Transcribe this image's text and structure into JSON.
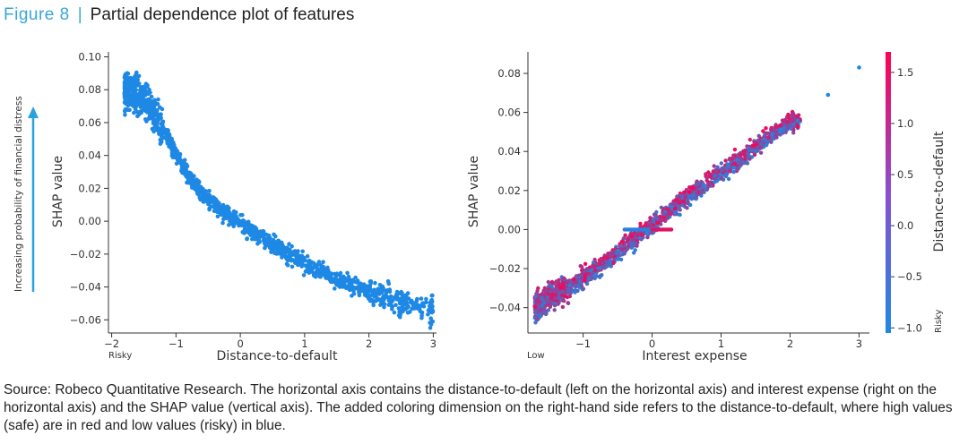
{
  "figure": {
    "label": "Figure  8",
    "separator": "|",
    "title": "Partial dependence plot of features"
  },
  "caption": "Source: Robeco Quantitative Research. The horizontal axis contains the distance-to-default (left on the horizontal axis) and interest expense (right on the horizontal axis) and the SHAP value (vertical axis). The added coloring dimension on the right-hand side refers to the distance-to-default, where high values (safe) are in red and low values (risky) in blue.",
  "side_annotation": "Increasing probability of financial distress",
  "colors": {
    "accent": "#3aa6d8",
    "arrow": "#29a3e0",
    "point_blue": "#1e88e5",
    "cmap_low": "#1e88e5",
    "cmap_high": "#ff0052"
  },
  "chart_data": [
    {
      "type": "scatter",
      "xlabel": "Distance-to-default",
      "ylabel": "SHAP value",
      "corner_label": "Risky",
      "xlim": [
        -2.05,
        3.05
      ],
      "ylim": [
        -0.068,
        0.103
      ],
      "xticks": [
        -2,
        -1,
        0,
        1,
        2,
        3
      ],
      "xtick_labels": [
        "−2",
        "−1",
        "0",
        "1",
        "2",
        "3"
      ],
      "yticks": [
        0.1,
        0.08,
        0.06,
        0.04,
        0.02,
        0.0,
        -0.02,
        -0.04,
        -0.06
      ],
      "ytick_labels": [
        "0.10",
        "0.08",
        "0.06",
        "0.04",
        "0.02",
        "0.00",
        "−0.02",
        "−0.04",
        "−0.06"
      ],
      "trend_x": [
        -1.75,
        -1.5,
        -1.25,
        -1.0,
        -0.75,
        -0.5,
        -0.25,
        0.0,
        0.25,
        0.5,
        0.75,
        1.0,
        1.5,
        2.0,
        2.5,
        3.0
      ],
      "trend_y": [
        0.079,
        0.075,
        0.06,
        0.041,
        0.024,
        0.013,
        0.005,
        -0.001,
        -0.008,
        -0.014,
        -0.02,
        -0.026,
        -0.036,
        -0.043,
        -0.049,
        -0.054
      ],
      "x_range": [
        -1.8,
        3.0
      ],
      "spread": 0.0035,
      "color": "#1e88e5"
    },
    {
      "type": "scatter",
      "xlabel": "Interest expense",
      "ylabel": "SHAP value",
      "corner_label": "Low",
      "colorbar_label": "Distance-to-default",
      "colorbar_corner_label": "Risky",
      "xlim": [
        -1.8,
        3.15
      ],
      "ylim": [
        -0.053,
        0.091
      ],
      "xticks": [
        -1,
        0,
        1,
        2,
        3
      ],
      "xtick_labels": [
        "−1",
        "0",
        "1",
        "2",
        "3"
      ],
      "yticks": [
        0.08,
        0.06,
        0.04,
        0.02,
        0.0,
        -0.02,
        -0.04
      ],
      "ytick_labels": [
        "0.08",
        "0.06",
        "0.04",
        "0.02",
        "0.00",
        "−0.02",
        "−0.04"
      ],
      "colorbar_range": [
        -1.05,
        1.7
      ],
      "colorbar_ticks": [
        1.5,
        1.0,
        0.5,
        0.0,
        -0.5,
        -1.0
      ],
      "colorbar_tick_labels": [
        "1.5",
        "1.0",
        "0.5",
        "0.0",
        "−0.5",
        "−1.0"
      ],
      "trend_x": [
        -1.7,
        -1.0,
        -0.5,
        0.0,
        0.5,
        1.0,
        1.5,
        2.0
      ],
      "trend_y": [
        -0.04,
        -0.025,
        -0.012,
        0.002,
        0.016,
        0.029,
        0.042,
        0.055
      ],
      "outliers_x": [
        2.55,
        3.0
      ],
      "outliers_y": [
        0.069,
        0.083
      ],
      "flat_segment": {
        "x": [
          -0.4,
          0.3
        ],
        "y": 0.0
      }
    }
  ]
}
